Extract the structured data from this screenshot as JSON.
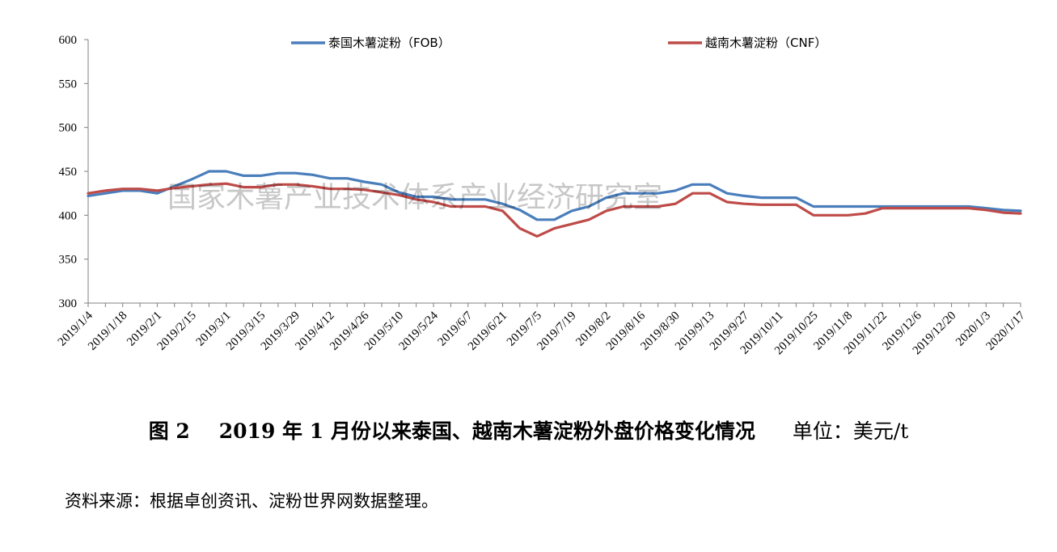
{
  "chart_data": {
    "type": "line",
    "x": [
      "2019/1/4",
      "2019/1/11",
      "2019/1/18",
      "2019/1/25",
      "2019/2/1",
      "2019/2/8",
      "2019/2/15",
      "2019/2/22",
      "2019/3/1",
      "2019/3/8",
      "2019/3/15",
      "2019/3/22",
      "2019/3/29",
      "2019/4/5",
      "2019/4/12",
      "2019/4/19",
      "2019/4/26",
      "2019/5/3",
      "2019/5/10",
      "2019/5/17",
      "2019/5/24",
      "2019/5/31",
      "2019/6/7",
      "2019/6/14",
      "2019/6/21",
      "2019/6/28",
      "2019/7/5",
      "2019/7/12",
      "2019/7/19",
      "2019/7/26",
      "2019/8/2",
      "2019/8/9",
      "2019/8/16",
      "2019/8/23",
      "2019/8/30",
      "2019/9/6",
      "2019/9/13",
      "2019/9/20",
      "2019/9/27",
      "2019/10/4",
      "2019/10/11",
      "2019/10/18",
      "2019/10/25",
      "2019/11/1",
      "2019/11/8",
      "2019/11/15",
      "2019/11/22",
      "2019/11/29",
      "2019/12/6",
      "2019/12/13",
      "2019/12/20",
      "2019/12/27",
      "2020/1/3",
      "2020/1/10",
      "2020/1/17"
    ],
    "x_tick_labels": [
      "2019/1/4",
      "2019/1/18",
      "2019/2/1",
      "2019/2/15",
      "2019/3/1",
      "2019/3/15",
      "2019/3/29",
      "2019/4/12",
      "2019/4/26",
      "2019/5/10",
      "2019/5/24",
      "2019/6/7",
      "2019/6/21",
      "2019/7/5",
      "2019/7/19",
      "2019/8/2",
      "2019/8/16",
      "2019/8/30",
      "2019/9/13",
      "2019/9/27",
      "2019/10/11",
      "2019/10/25",
      "2019/11/8",
      "2019/11/22",
      "2019/12/6",
      "2019/12/20",
      "2020/1/3",
      "2020/1/17"
    ],
    "series": [
      {
        "name": "泰国木薯淀粉（FOB）",
        "color": "#4a7ebb",
        "values": [
          422,
          425,
          428,
          428,
          425,
          433,
          441,
          450,
          450,
          445,
          445,
          448,
          448,
          446,
          442,
          442,
          438,
          435,
          426,
          421,
          421,
          418,
          418,
          418,
          413,
          406,
          395,
          395,
          405,
          410,
          420,
          425,
          425,
          425,
          428,
          435,
          435,
          425,
          422,
          420,
          420,
          420,
          410,
          410,
          410,
          410,
          410,
          410,
          410,
          410,
          410,
          410,
          408,
          406,
          405
        ]
      },
      {
        "name": "越南木薯淀粉（CNF）",
        "color": "#be4b48",
        "values": [
          425,
          428,
          430,
          430,
          428,
          431,
          433,
          435,
          436,
          432,
          432,
          435,
          435,
          433,
          430,
          430,
          429,
          426,
          423,
          418,
          415,
          410,
          410,
          410,
          405,
          385,
          376,
          385,
          390,
          395,
          405,
          410,
          410,
          410,
          413,
          425,
          425,
          415,
          413,
          412,
          412,
          412,
          400,
          400,
          400,
          402,
          408,
          408,
          408,
          408,
          408,
          408,
          406,
          403,
          402
        ]
      }
    ],
    "ylim": [
      300,
      600
    ],
    "y_ticks": [
      300,
      350,
      400,
      450,
      500,
      550,
      600
    ],
    "grid": false,
    "legend_position": "top"
  },
  "watermark": "国家木薯产业技术体系产业经济研究室",
  "caption": {
    "figure_label": "图 2",
    "title": "2019 年 1 月份以来泰国、越南木薯淀粉外盘价格变化情况",
    "unit": "单位：美元/t"
  },
  "source_note": "资料来源：根据卓创资讯、淀粉世界网数据整理。"
}
